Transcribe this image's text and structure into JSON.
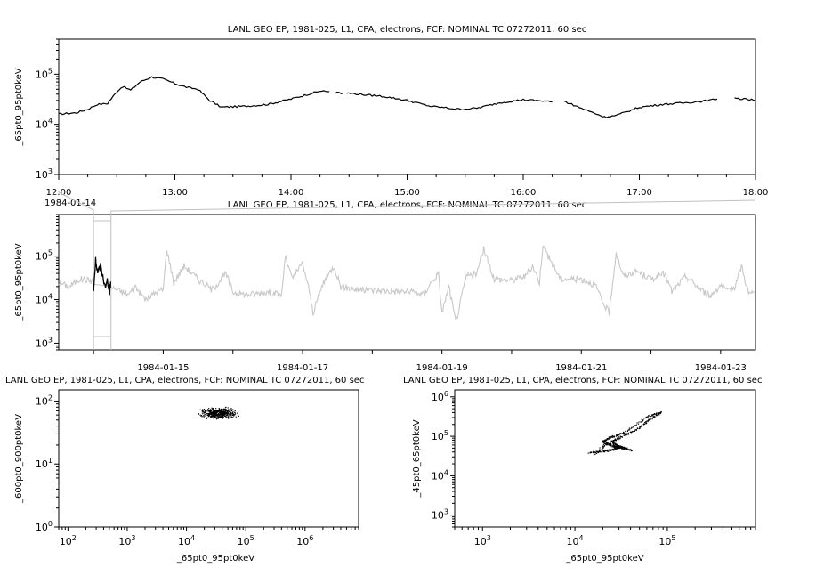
{
  "chart_data": [
    {
      "type": "line",
      "panel": "top",
      "title": "LANL GEO EP, 1981-025, L1, CPA, electrons, FCF: NOMINAL TC 07272011, 60 sec",
      "ylabel": "_65pt0_95pt0keV",
      "yscale": "log",
      "ylim": [
        1000,
        500000
      ],
      "x_ticks": [
        "12:00",
        "13:00",
        "14:00",
        "15:00",
        "16:00",
        "17:00",
        "18:00"
      ],
      "x_date": "1984-01-14",
      "xlim_hours": [
        12,
        18
      ],
      "series_segments": [
        [
          [
            12.0,
            16000
          ],
          [
            12.15,
            17000
          ],
          [
            12.25,
            20000
          ],
          [
            12.33,
            25000
          ],
          [
            12.42,
            26000
          ],
          [
            12.5,
            45000
          ],
          [
            12.55,
            57000
          ],
          [
            12.62,
            48000
          ],
          [
            12.7,
            70000
          ],
          [
            12.8,
            88000
          ],
          [
            12.9,
            80000
          ],
          [
            13.0,
            65000
          ],
          [
            13.1,
            55000
          ],
          [
            13.2,
            50000
          ],
          [
            13.3,
            30000
          ],
          [
            13.4,
            22000
          ],
          [
            13.6,
            23000
          ],
          [
            13.8,
            25000
          ],
          [
            14.0,
            32000
          ],
          [
            14.15,
            40000
          ],
          [
            14.25,
            46000
          ],
          [
            14.33,
            45000
          ]
        ],
        [
          [
            14.38,
            43000
          ],
          [
            14.45,
            42000
          ]
        ],
        [
          [
            14.48,
            42000
          ],
          [
            14.8,
            36000
          ],
          [
            15.0,
            30000
          ],
          [
            15.2,
            23000
          ],
          [
            15.45,
            20000
          ],
          [
            15.6,
            21000
          ],
          [
            15.8,
            27000
          ],
          [
            16.0,
            31000
          ],
          [
            16.2,
            29000
          ],
          [
            16.25,
            28000
          ]
        ],
        [
          [
            16.35,
            29000
          ],
          [
            16.5,
            21000
          ],
          [
            16.7,
            14000
          ],
          [
            16.8,
            15000
          ],
          [
            17.0,
            22000
          ],
          [
            17.2,
            25000
          ],
          [
            17.4,
            27000
          ],
          [
            17.6,
            30000
          ],
          [
            17.67,
            32000
          ]
        ],
        [
          [
            17.82,
            33000
          ],
          [
            17.95,
            31000
          ],
          [
            18.0,
            30000
          ]
        ]
      ]
    },
    {
      "type": "line",
      "panel": "middle",
      "title": "LANL GEO EP, 1981-025, L1, CPA, electrons, FCF: NOMINAL TC 07272011, 60 sec",
      "ylabel": "_65pt0_95pt0keV",
      "yscale": "log",
      "ylim": [
        700,
        900000
      ],
      "x_ticks": [
        "1984-01-15",
        "1984-01-17",
        "1984-01-19",
        "1984-01-21",
        "1984-01-23"
      ],
      "xlim_days": [
        13.5,
        23.5
      ],
      "highlight_range_days": [
        14.0,
        14.25
      ],
      "background_series": [
        [
          13.5,
          25000
        ],
        [
          13.65,
          20000
        ],
        [
          13.8,
          30000
        ],
        [
          13.95,
          28000
        ],
        [
          14.3,
          18000
        ],
        [
          14.5,
          13000
        ],
        [
          14.6,
          20000
        ],
        [
          14.75,
          10000
        ],
        [
          14.9,
          15000
        ],
        [
          15.0,
          17000
        ],
        [
          15.05,
          150000
        ],
        [
          15.15,
          25000
        ],
        [
          15.3,
          60000
        ],
        [
          15.5,
          30000
        ],
        [
          15.7,
          17000
        ],
        [
          15.9,
          40000
        ],
        [
          16.0,
          15000
        ],
        [
          16.2,
          13000
        ],
        [
          16.5,
          15000
        ],
        [
          16.7,
          13000
        ],
        [
          16.75,
          100000
        ],
        [
          16.85,
          30000
        ],
        [
          17.0,
          70000
        ],
        [
          17.1,
          15000
        ],
        [
          17.15,
          5000
        ],
        [
          17.3,
          25000
        ],
        [
          17.45,
          60000
        ],
        [
          17.55,
          20000
        ],
        [
          17.8,
          17000
        ],
        [
          18.2,
          16000
        ],
        [
          18.6,
          15000
        ],
        [
          18.75,
          13000
        ],
        [
          18.8,
          20000
        ],
        [
          18.95,
          40000
        ],
        [
          19.0,
          5000
        ],
        [
          19.1,
          20000
        ],
        [
          19.2,
          3000
        ],
        [
          19.35,
          35000
        ],
        [
          19.5,
          40000
        ],
        [
          19.6,
          150000
        ],
        [
          19.75,
          30000
        ],
        [
          20.0,
          28000
        ],
        [
          20.2,
          35000
        ],
        [
          20.3,
          60000
        ],
        [
          20.4,
          25000
        ],
        [
          20.45,
          200000
        ],
        [
          20.5,
          120000
        ],
        [
          20.7,
          30000
        ],
        [
          21.0,
          30000
        ],
        [
          21.2,
          22000
        ],
        [
          21.3,
          9000
        ],
        [
          21.4,
          5000
        ],
        [
          21.5,
          120000
        ],
        [
          21.6,
          35000
        ],
        [
          21.8,
          45000
        ],
        [
          22.0,
          30000
        ],
        [
          22.2,
          40000
        ],
        [
          22.3,
          15000
        ],
        [
          22.5,
          35000
        ],
        [
          22.6,
          25000
        ],
        [
          22.7,
          18000
        ],
        [
          22.85,
          12000
        ],
        [
          23.0,
          22000
        ],
        [
          23.1,
          15000
        ],
        [
          23.2,
          20000
        ],
        [
          23.3,
          60000
        ],
        [
          23.4,
          14000
        ],
        [
          23.5,
          14000
        ]
      ],
      "highlight_series": [
        [
          14.0,
          16000
        ],
        [
          14.03,
          80000
        ],
        [
          14.06,
          40000
        ],
        [
          14.1,
          60000
        ],
        [
          14.14,
          30000
        ],
        [
          14.18,
          20000
        ],
        [
          14.2,
          30000
        ],
        [
          14.23,
          15000
        ],
        [
          14.25,
          28000
        ]
      ]
    },
    {
      "type": "scatter",
      "panel": "bottom-left",
      "title": "LANL GEO EP, 1981-025, L1, CPA, electrons, FCF: NOMINAL TC 07272011, 60 sec",
      "xlabel": "_65pt0_95pt0keV",
      "ylabel": "_600pt0_900pt0keV",
      "xscale": "log",
      "yscale": "log",
      "xlim": [
        70,
        8000000
      ],
      "ylim": [
        1,
        150
      ],
      "cluster": {
        "x_range": [
          14000,
          90000
        ],
        "y_range": [
          50,
          85
        ]
      }
    },
    {
      "type": "scatter",
      "panel": "bottom-right",
      "title": "LANL GEO EP, 1981-025, L1, CPA, electrons, FCF: NOMINAL TC 07272011, 60 sec",
      "xlabel": "_65pt0_95pt0keV",
      "ylabel": "_45pt0_65pt0keV",
      "xscale": "log",
      "yscale": "log",
      "xlim": [
        500,
        900000
      ],
      "ylim": [
        500,
        1500000
      ],
      "trajectory": [
        [
          14000,
          40000
        ],
        [
          20000,
          42000
        ],
        [
          26000,
          48000
        ],
        [
          30000,
          55000
        ],
        [
          25000,
          75000
        ],
        [
          30000,
          95000
        ],
        [
          45000,
          150000
        ],
        [
          60000,
          250000
        ],
        [
          85000,
          420000
        ],
        [
          60000,
          330000
        ],
        [
          35000,
          130000
        ],
        [
          25000,
          100000
        ],
        [
          20000,
          80000
        ],
        [
          22000,
          65000
        ],
        [
          27000,
          55000
        ],
        [
          32000,
          52000
        ],
        [
          40000,
          45000
        ],
        [
          30000,
          58000
        ],
        [
          22000,
          70000
        ],
        [
          16000,
          35000
        ]
      ]
    }
  ]
}
